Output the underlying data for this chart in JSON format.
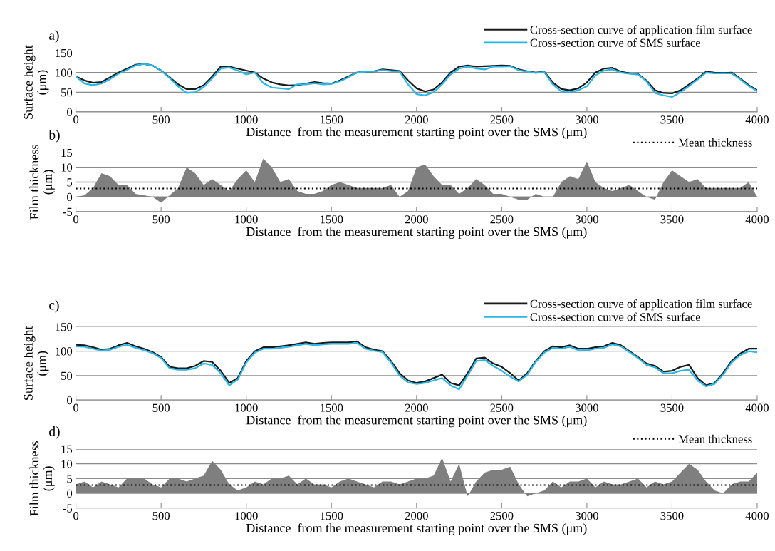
{
  "chart_data": [
    {
      "type": "line",
      "annotations": [
        "a)"
      ],
      "xlabel": "Distance  from the measurement starting point over the SMS (μm)",
      "ylabel": "Surface height\n(μm)",
      "x": [
        0,
        50,
        100,
        150,
        200,
        250,
        300,
        350,
        400,
        450,
        500,
        550,
        600,
        650,
        700,
        750,
        800,
        850,
        900,
        950,
        1000,
        1050,
        1100,
        1150,
        1200,
        1250,
        1300,
        1350,
        1400,
        1450,
        1500,
        1550,
        1600,
        1650,
        1700,
        1750,
        1800,
        1850,
        1900,
        1950,
        2000,
        2050,
        2100,
        2150,
        2200,
        2250,
        2300,
        2350,
        2400,
        2450,
        2500,
        2550,
        2600,
        2650,
        2700,
        2750,
        2800,
        2850,
        2900,
        2950,
        3000,
        3050,
        3100,
        3150,
        3200,
        3250,
        3300,
        3350,
        3400,
        3450,
        3500,
        3550,
        3600,
        3650,
        3700,
        3750,
        3800,
        3850,
        3900,
        3950,
        4000
      ],
      "series": [
        {
          "name": "Cross-section curve of application film surface",
          "color": "#1a1a1a",
          "values": [
            90,
            80,
            74,
            76,
            88,
            100,
            110,
            120,
            122,
            118,
            105,
            88,
            70,
            58,
            58,
            68,
            90,
            115,
            115,
            110,
            105,
            100,
            85,
            75,
            70,
            67,
            68,
            72,
            76,
            73,
            72,
            80,
            90,
            100,
            102,
            103,
            108,
            106,
            104,
            80,
            60,
            52,
            57,
            75,
            100,
            115,
            118,
            115,
            116,
            117,
            118,
            117,
            108,
            103,
            100,
            102,
            75,
            58,
            55,
            60,
            75,
            100,
            110,
            112,
            102,
            98,
            96,
            80,
            55,
            48,
            47,
            55,
            70,
            85,
            102,
            100,
            99,
            100,
            85,
            68,
            55
          ]
        },
        {
          "name": "Cross-section curve of SMS surface",
          "color": "#29b6e8",
          "values": [
            90,
            72,
            68,
            72,
            83,
            97,
            107,
            118,
            122,
            118,
            105,
            86,
            65,
            48,
            50,
            63,
            85,
            110,
            113,
            105,
            95,
            100,
            73,
            62,
            60,
            58,
            70,
            70,
            73,
            70,
            71,
            78,
            88,
            100,
            102,
            103,
            106,
            104,
            103,
            70,
            45,
            42,
            50,
            70,
            95,
            110,
            115,
            110,
            108,
            115,
            115,
            116,
            106,
            102,
            99,
            101,
            70,
            52,
            50,
            55,
            65,
            93,
            105,
            108,
            100,
            97,
            95,
            78,
            48,
            42,
            38,
            50,
            66,
            82,
            100,
            98,
            98,
            98,
            83,
            66,
            53
          ]
        }
      ],
      "xlim": [
        0,
        4000
      ],
      "xticks": [
        0,
        500,
        1000,
        1500,
        2000,
        2500,
        3000,
        3500,
        4000
      ],
      "ylim": [
        0,
        150
      ],
      "yticks": [
        0,
        50,
        100,
        150
      ],
      "grid": "y",
      "legend": "top right",
      "line_style": "solid"
    },
    {
      "type": "area",
      "annotations": [
        "b)"
      ],
      "xlabel": "Distance  from the measurement starting point over the SMS (μm)",
      "ylabel": "Film thickness\n(μm)",
      "x": [
        0,
        50,
        100,
        150,
        200,
        250,
        300,
        350,
        400,
        450,
        500,
        550,
        600,
        650,
        700,
        750,
        800,
        850,
        900,
        950,
        1000,
        1050,
        1100,
        1150,
        1200,
        1250,
        1300,
        1350,
        1400,
        1450,
        1500,
        1550,
        1600,
        1650,
        1700,
        1750,
        1800,
        1850,
        1900,
        1950,
        2000,
        2050,
        2100,
        2150,
        2200,
        2250,
        2300,
        2350,
        2400,
        2450,
        2500,
        2550,
        2600,
        2650,
        2700,
        2750,
        2800,
        2850,
        2900,
        2950,
        3000,
        3050,
        3100,
        3150,
        3200,
        3250,
        3300,
        3350,
        3400,
        3450,
        3500,
        3550,
        3600,
        3650,
        3700,
        3750,
        3800,
        3850,
        3900,
        3950,
        4000
      ],
      "series": [
        {
          "color": "#7f7f7f",
          "values": [
            0,
            0.5,
            3,
            8,
            7,
            4,
            4,
            1,
            0.5,
            0,
            -2,
            0.5,
            3,
            10,
            8,
            4,
            6,
            4,
            2,
            6,
            9,
            5,
            13,
            10,
            5,
            6,
            2,
            1,
            1,
            2,
            4,
            5,
            4,
            3,
            3,
            3,
            3,
            4,
            0,
            2,
            10,
            11,
            7,
            4,
            4,
            1,
            3,
            6,
            4,
            1,
            1,
            0,
            -1,
            -1,
            1,
            0,
            0,
            5,
            7,
            6,
            12,
            5,
            3,
            2,
            3,
            4,
            2,
            0,
            -1,
            5,
            9,
            7,
            5,
            6,
            3,
            3,
            3,
            3,
            3,
            5,
            0
          ]
        }
      ],
      "ref_lines": [
        {
          "axis": "y",
          "value": 2.8,
          "label": "Mean thickness",
          "color": "#000000",
          "line_style": "dotted"
        }
      ],
      "xlim": [
        0,
        4000
      ],
      "xticks": [
        0,
        500,
        1000,
        1500,
        2000,
        2500,
        3000,
        3500,
        4000
      ],
      "ylim": [
        -5,
        15
      ],
      "yticks": [
        {
          "value": -5,
          "label": "-5"
        },
        0,
        5,
        10,
        15
      ],
      "grid": "y",
      "legend": "top right"
    },
    {
      "type": "line",
      "annotations": [
        "c)"
      ],
      "xlabel": "Distance  from the measurement starting point over the SMS (μm)",
      "ylabel": "Surface height\n(μm)",
      "x": [
        0,
        50,
        100,
        150,
        200,
        250,
        300,
        350,
        400,
        450,
        500,
        550,
        600,
        650,
        700,
        750,
        800,
        850,
        900,
        950,
        1000,
        1050,
        1100,
        1150,
        1200,
        1250,
        1300,
        1350,
        1400,
        1450,
        1500,
        1550,
        1600,
        1650,
        1700,
        1750,
        1800,
        1850,
        1900,
        1950,
        2000,
        2050,
        2100,
        2150,
        2200,
        2250,
        2300,
        2350,
        2400,
        2450,
        2500,
        2550,
        2600,
        2650,
        2700,
        2750,
        2800,
        2850,
        2900,
        2950,
        3000,
        3050,
        3100,
        3150,
        3200,
        3250,
        3300,
        3350,
        3400,
        3450,
        3500,
        3550,
        3600,
        3650,
        3700,
        3750,
        3800,
        3850,
        3900,
        3950,
        4000
      ],
      "series": [
        {
          "name": "Cross-section curve of application film surface",
          "color": "#1a1a1a",
          "values": [
            113,
            112,
            108,
            103,
            105,
            112,
            117,
            110,
            105,
            98,
            88,
            68,
            65,
            65,
            70,
            80,
            78,
            60,
            35,
            45,
            80,
            100,
            108,
            108,
            110,
            112,
            115,
            118,
            115,
            117,
            118,
            118,
            118,
            120,
            108,
            103,
            100,
            80,
            55,
            40,
            35,
            38,
            45,
            52,
            35,
            30,
            55,
            85,
            87,
            75,
            68,
            55,
            40,
            55,
            80,
            100,
            110,
            108,
            112,
            105,
            105,
            108,
            110,
            117,
            112,
            100,
            88,
            75,
            70,
            58,
            60,
            68,
            72,
            45,
            30,
            35,
            55,
            80,
            95,
            105,
            105
          ]
        },
        {
          "name": "Cross-section curve of SMS surface",
          "color": "#29b6e8",
          "values": [
            110,
            109,
            105,
            101,
            103,
            109,
            113,
            107,
            102,
            96,
            86,
            65,
            62,
            62,
            65,
            75,
            72,
            55,
            30,
            42,
            77,
            97,
            105,
            105,
            107,
            109,
            112,
            115,
            112,
            114,
            115,
            115,
            115,
            117,
            105,
            101,
            98,
            77,
            50,
            36,
            33,
            35,
            40,
            45,
            30,
            22,
            50,
            80,
            82,
            70,
            60,
            48,
            38,
            52,
            78,
            97,
            107,
            105,
            109,
            102,
            102,
            105,
            107,
            114,
            110,
            98,
            86,
            72,
            67,
            55,
            55,
            60,
            62,
            40,
            28,
            33,
            52,
            77,
            92,
            100,
            98
          ]
        }
      ],
      "xlim": [
        0,
        4000
      ],
      "xticks": [
        0,
        500,
        1000,
        1500,
        2000,
        2500,
        3000,
        3500,
        4000
      ],
      "ylim": [
        0,
        150
      ],
      "yticks": [
        0,
        50,
        100,
        150
      ],
      "grid": "y",
      "legend": "top right",
      "line_style": "solid"
    },
    {
      "type": "area",
      "annotations": [
        "d)"
      ],
      "xlabel": "Distance  from the measurement starting point over the SMS (μm)",
      "ylabel": "Film thickness\n(μm)",
      "x": [
        0,
        50,
        100,
        150,
        200,
        250,
        300,
        350,
        400,
        450,
        500,
        550,
        600,
        650,
        700,
        750,
        800,
        850,
        900,
        950,
        1000,
        1050,
        1100,
        1150,
        1200,
        1250,
        1300,
        1350,
        1400,
        1450,
        1500,
        1550,
        1600,
        1650,
        1700,
        1750,
        1800,
        1850,
        1900,
        1950,
        2000,
        2050,
        2100,
        2150,
        2200,
        2250,
        2300,
        2350,
        2400,
        2450,
        2500,
        2550,
        2600,
        2650,
        2700,
        2750,
        2800,
        2850,
        2900,
        2950,
        3000,
        3050,
        3100,
        3150,
        3200,
        3250,
        3300,
        3350,
        3400,
        3450,
        3500,
        3550,
        3600,
        3650,
        3700,
        3750,
        3800,
        3850,
        3900,
        3950,
        4000
      ],
      "series": [
        {
          "color": "#7f7f7f",
          "values": [
            3,
            4,
            2,
            4,
            3,
            2,
            5,
            5,
            5,
            3,
            2,
            5,
            5,
            4,
            5,
            6,
            11,
            8,
            3,
            1,
            2,
            4,
            3,
            5,
            5,
            6,
            3,
            5,
            3,
            3,
            2,
            4,
            5,
            4,
            3,
            2,
            4,
            4,
            3,
            4,
            5,
            5,
            6,
            12,
            4,
            10,
            -1,
            4,
            7,
            8,
            8,
            9,
            3,
            -1,
            0,
            1,
            4,
            2,
            4,
            4,
            5,
            2,
            4,
            3,
            3,
            4,
            5,
            2,
            4,
            3,
            4,
            7,
            10,
            8,
            4,
            1,
            0,
            3,
            4,
            4,
            7
          ]
        }
      ],
      "ref_lines": [
        {
          "axis": "y",
          "value": 2.8,
          "label": "Mean thickness",
          "color": "#000000",
          "line_style": "dotted"
        }
      ],
      "xlim": [
        0,
        4000
      ],
      "xticks": [
        0,
        500,
        1000,
        1500,
        2000,
        2500,
        3000,
        3500,
        4000
      ],
      "ylim": [
        -5,
        15
      ],
      "yticks": [
        {
          "value": -5,
          "label": "-5"
        },
        0,
        5,
        10,
        15
      ],
      "grid": "y",
      "legend": "top right"
    }
  ]
}
